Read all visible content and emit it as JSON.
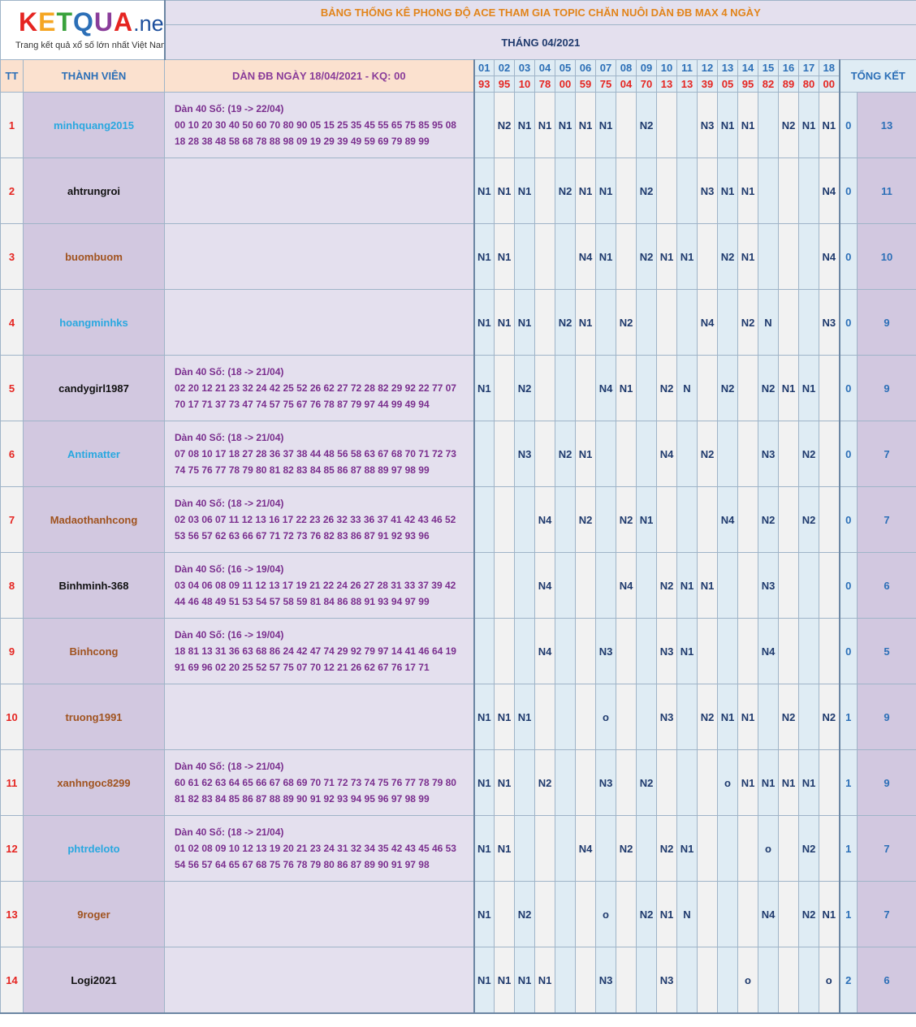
{
  "logo": {
    "letters": [
      "K",
      "E",
      "T",
      "Q",
      "U",
      "A"
    ],
    "letter_colors": [
      "#e52521",
      "#f5a623",
      "#3aa23c",
      "#2c6fb7",
      "#8a3d9a",
      "#e52521"
    ],
    "suffix": ".net",
    "tagline": "Trang kết quả xổ số lớn nhất Việt Nam"
  },
  "banner": "BẢNG THỐNG KÊ PHONG ĐỘ ACE THAM GIA TOPIC CHĂN NUÔI DÀN ĐB MAX 4 NGÀY",
  "month_title": "THÁNG 04/2021",
  "headers": {
    "tt": "TT",
    "member": "THÀNH VIÊN",
    "dan": "DÀN ĐB NGÀY 18/04/2021 - KQ: 00",
    "summary": "TỔNG KẾT"
  },
  "days": [
    "01",
    "02",
    "03",
    "04",
    "05",
    "06",
    "07",
    "08",
    "09",
    "10",
    "11",
    "12",
    "13",
    "14",
    "15",
    "16",
    "17",
    "18"
  ],
  "results": [
    "93",
    "95",
    "10",
    "78",
    "00",
    "59",
    "75",
    "04",
    "70",
    "13",
    "13",
    "39",
    "05",
    "95",
    "82",
    "89",
    "80",
    "00"
  ],
  "rows": [
    {
      "tt": "1",
      "name": "minhquang2015",
      "name_color": "#29a8e0",
      "dan": [
        "Dàn 40 Số: (19 -> 22/04)",
        "00 10 20 30 40 50 60 70 80 90 05 15 25 35 45 55 65 75 85 95 08",
        "18 28 38 48 58 68 78 88 98 09 19 29 39 49 59 69 79 89 99"
      ],
      "marks": [
        "",
        "N2",
        "N1",
        "N1",
        "N1",
        "N1",
        "N1",
        "",
        "N2",
        "",
        "",
        "N3",
        "N1",
        "N1",
        "",
        "N2",
        "N1",
        "N1"
      ],
      "wins": "0",
      "total": "13"
    },
    {
      "tt": "2",
      "name": "ahtrungroi",
      "name_color": "#111111",
      "dan": [
        "",
        "",
        ""
      ],
      "marks": [
        "N1",
        "N1",
        "N1",
        "",
        "N2",
        "N1",
        "N1",
        "",
        "N2",
        "",
        "",
        "N3",
        "N1",
        "N1",
        "",
        "",
        "",
        "N4"
      ],
      "wins": "0",
      "total": "11"
    },
    {
      "tt": "3",
      "name": "buombuom",
      "name_color": "#a0531f",
      "dan": [
        "",
        "",
        ""
      ],
      "marks": [
        "N1",
        "N1",
        "",
        "",
        "",
        "N4",
        "N1",
        "",
        "N2",
        "N1",
        "N1",
        "",
        "N2",
        "N1",
        "",
        "",
        "",
        "N4"
      ],
      "wins": "0",
      "total": "10"
    },
    {
      "tt": "4",
      "name": "hoangminhks",
      "name_color": "#29a8e0",
      "dan": [
        "",
        "",
        ""
      ],
      "marks": [
        "N1",
        "N1",
        "N1",
        "",
        "N2",
        "N1",
        "",
        "N2",
        "",
        "",
        "",
        "N4",
        "",
        "N2",
        "N",
        "",
        "",
        "N3"
      ],
      "wins": "0",
      "total": "9"
    },
    {
      "tt": "5",
      "name": "candygirl1987",
      "name_color": "#111111",
      "dan": [
        "Dàn 40 Số: (18 -> 21/04)",
        "02 20 12 21 23 32 24 42 25 52 26 62 27 72 28 82 29 92 22 77 07",
        "70 17 71 37 73 47 74 57 75 67 76 78 87 79 97 44 99 49 94"
      ],
      "marks": [
        "N1",
        "",
        "N2",
        "",
        "",
        "",
        "N4",
        "N1",
        "",
        "N2",
        "N",
        "",
        "N2",
        "",
        "N2",
        "N1",
        "N1",
        ""
      ],
      "wins": "0",
      "total": "9"
    },
    {
      "tt": "6",
      "name": "Antimatter",
      "name_color": "#29a8e0",
      "dan": [
        "Dàn 40 Số: (18 -> 21/04)",
        "07 08 10 17 18 27 28 36 37 38 44 48 56 58 63 67 68 70 71 72 73",
        "74 75 76 77 78 79 80 81 82 83 84 85 86 87 88 89 97 98 99"
      ],
      "marks": [
        "",
        "",
        "N3",
        "",
        "N2",
        "N1",
        "",
        "",
        "",
        "N4",
        "",
        "N2",
        "",
        "",
        "N3",
        "",
        "N2",
        ""
      ],
      "wins": "0",
      "total": "7"
    },
    {
      "tt": "7",
      "name": "Madaothanhcong",
      "name_color": "#a0531f",
      "dan": [
        "Dàn 40 Số: (18 -> 21/04)",
        "02 03 06 07 11 12 13 16 17 22 23 26 32 33 36 37 41 42 43 46 52",
        "53 56 57 62 63 66 67 71 72 73 76 82 83 86 87 91 92 93 96"
      ],
      "marks": [
        "",
        "",
        "",
        "N4",
        "",
        "N2",
        "",
        "N2",
        "N1",
        "",
        "",
        "",
        "N4",
        "",
        "N2",
        "",
        "N2",
        ""
      ],
      "wins": "0",
      "total": "7"
    },
    {
      "tt": "8",
      "name": "Binhminh-368",
      "name_color": "#111111",
      "dan": [
        "Dàn 40 Số: (16 -> 19/04)",
        "03 04 06 08 09 11 12 13 17 19 21 22 24 26 27 28 31 33 37 39 42",
        "44 46 48 49 51 53 54 57 58 59 81 84 86 88 91 93 94 97 99"
      ],
      "marks": [
        "",
        "",
        "",
        "N4",
        "",
        "",
        "",
        "N4",
        "",
        "N2",
        "N1",
        "N1",
        "",
        "",
        "N3",
        "",
        "",
        ""
      ],
      "wins": "0",
      "total": "6"
    },
    {
      "tt": "9",
      "name": "Binhcong",
      "name_color": "#a0531f",
      "dan": [
        "Dàn 40 Số: (16 -> 19/04)",
        "18 81 13 31 36 63 68 86 24 42 47 74 29 92 79 97 14 41 46 64 19",
        "91 69 96 02 20 25 52 57 75 07 70 12 21 26 62 67 76 17 71"
      ],
      "marks": [
        "",
        "",
        "",
        "N4",
        "",
        "",
        "N3",
        "",
        "",
        "N3",
        "N1",
        "",
        "",
        "",
        "N4",
        "",
        "",
        ""
      ],
      "wins": "0",
      "total": "5"
    },
    {
      "tt": "10",
      "name": "truong1991",
      "name_color": "#a0531f",
      "dan": [
        "",
        "",
        ""
      ],
      "marks": [
        "N1",
        "N1",
        "N1",
        "",
        "",
        "",
        "o",
        "",
        "",
        "N3",
        "",
        "N2",
        "N1",
        "N1",
        "",
        "N2",
        "",
        "N2"
      ],
      "wins": "1",
      "total": "9"
    },
    {
      "tt": "11",
      "name": "xanhngoc8299",
      "name_color": "#a0531f",
      "dan": [
        "Dàn 40 Số: (18 -> 21/04)",
        "60 61 62 63 64 65 66 67 68 69 70 71 72 73 74 75 76 77 78 79 80",
        "81 82 83 84 85 86 87 88 89 90 91 92 93 94 95 96 97 98 99"
      ],
      "marks": [
        "N1",
        "N1",
        "",
        "N2",
        "",
        "",
        "N3",
        "",
        "N2",
        "",
        "",
        "",
        "o",
        "N1",
        "N1",
        "N1",
        "N1",
        ""
      ],
      "wins": "1",
      "total": "9"
    },
    {
      "tt": "12",
      "name": "phtrdeloto",
      "name_color": "#29a8e0",
      "dan": [
        "Dàn 40 Số: (18 -> 21/04)",
        "01 02 08 09 10 12 13 19 20 21 23 24 31 32 34 35 42 43 45 46 53",
        "54 56 57 64 65 67 68 75 76 78 79 80 86 87 89 90 91 97 98"
      ],
      "marks": [
        "N1",
        "N1",
        "",
        "",
        "",
        "N4",
        "",
        "N2",
        "",
        "N2",
        "N1",
        "",
        "",
        "",
        "o",
        "",
        "N2",
        ""
      ],
      "wins": "1",
      "total": "7"
    },
    {
      "tt": "13",
      "name": "9roger",
      "name_color": "#a0531f",
      "dan": [
        "",
        "",
        ""
      ],
      "marks": [
        "N1",
        "",
        "N2",
        "",
        "",
        "",
        "o",
        "",
        "N2",
        "N1",
        "N",
        "",
        "",
        "",
        "N4",
        "",
        "N2",
        "N1"
      ],
      "wins": "1",
      "total": "7"
    },
    {
      "tt": "14",
      "name": "Logi2021",
      "name_color": "#111111",
      "dan": [
        "",
        "",
        ""
      ],
      "marks": [
        "N1",
        "N1",
        "N1",
        "N1",
        "",
        "",
        "N3",
        "",
        "",
        "N3",
        "",
        "",
        "",
        "o",
        "",
        "",
        "",
        "o"
      ],
      "wins": "2",
      "total": "6"
    }
  ]
}
